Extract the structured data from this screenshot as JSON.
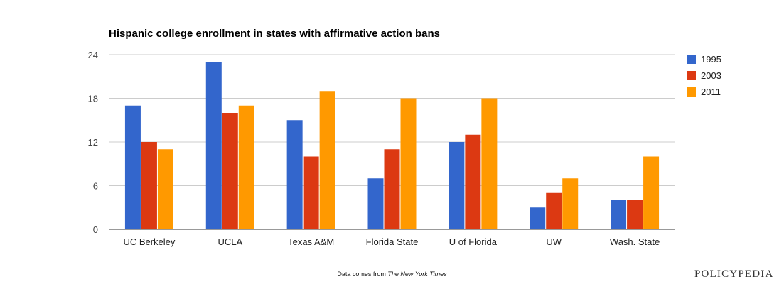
{
  "chart_data": {
    "type": "bar",
    "title": "Hispanic college enrollment in states with affirmative action bans",
    "xlabel": "",
    "ylabel": "",
    "categories": [
      "UC Berkeley",
      "UCLA",
      "Texas A&M",
      "Florida State",
      "U of Florida",
      "UW",
      "Wash. State"
    ],
    "series": [
      {
        "name": "1995",
        "color": "#3366cc",
        "values": [
          17,
          23,
          15,
          7,
          12,
          3,
          4
        ]
      },
      {
        "name": "2003",
        "color": "#dc3912",
        "values": [
          12,
          16,
          10,
          11,
          13,
          5,
          4
        ]
      },
      {
        "name": "2011",
        "color": "#ff9900",
        "values": [
          11,
          17,
          19,
          18,
          18,
          7,
          10
        ]
      }
    ],
    "ylim": [
      0,
      24
    ],
    "yticks": [
      0,
      6,
      12,
      18,
      24
    ],
    "grid": true,
    "legend_position": "right"
  },
  "footer": {
    "prefix": "Data comes from ",
    "source_name": "The New York Times"
  },
  "logo": {
    "text": "POLICYPEDIA"
  }
}
